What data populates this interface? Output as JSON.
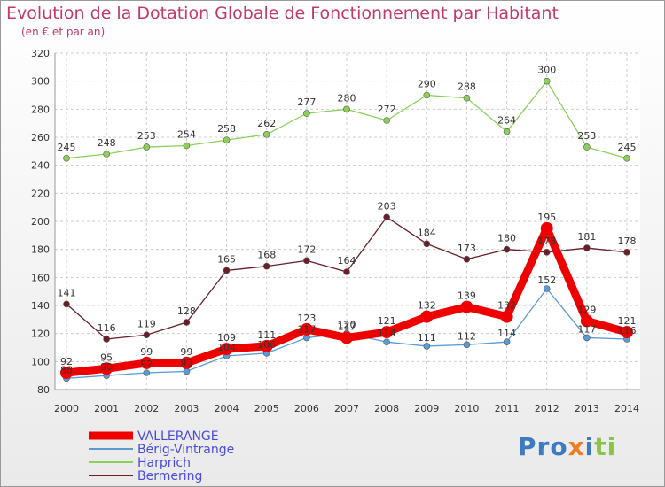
{
  "title": "Evolution de la Dotation Globale de Fonctionnement par Habitant",
  "subtitle": "(en € et par an)",
  "logo": [
    "Pro",
    "x",
    "i",
    "ti"
  ],
  "chart_data": {
    "type": "line",
    "title": "Evolution de la Dotation Globale de Fonctionnement par Habitant",
    "subtitle": "(en € et par an)",
    "x": [
      "2000",
      "2001",
      "2002",
      "2003",
      "2004",
      "2005",
      "2006",
      "2007",
      "2008",
      "2009",
      "2010",
      "2011",
      "2012",
      "2013",
      "2014"
    ],
    "ylim": [
      80,
      320
    ],
    "yticks": [
      80,
      100,
      120,
      140,
      160,
      180,
      200,
      220,
      240,
      260,
      280,
      300,
      320
    ],
    "grid": true,
    "legend_position": "bottom-left",
    "series": [
      {
        "name": "VALLERANGE",
        "color": "#ee0000",
        "values": [
          92,
          95,
          99,
          99,
          109,
          111,
          123,
          117,
          121,
          132,
          139,
          132,
          195,
          129,
          121
        ]
      },
      {
        "name": "Bérig-Vintrange",
        "color": "#5b9bd5",
        "values": [
          88,
          90,
          92,
          93,
          104,
          106,
          117,
          120,
          114,
          111,
          112,
          114,
          152,
          117,
          116
        ]
      },
      {
        "name": "Harprich",
        "color": "#8cd05a",
        "values": [
          245,
          248,
          253,
          254,
          258,
          262,
          277,
          280,
          272,
          290,
          288,
          264,
          300,
          253,
          245
        ]
      },
      {
        "name": "Bermering",
        "color": "#6b1e28",
        "values": [
          141,
          116,
          119,
          128,
          165,
          168,
          172,
          164,
          203,
          184,
          173,
          180,
          178,
          181,
          178
        ]
      }
    ]
  }
}
